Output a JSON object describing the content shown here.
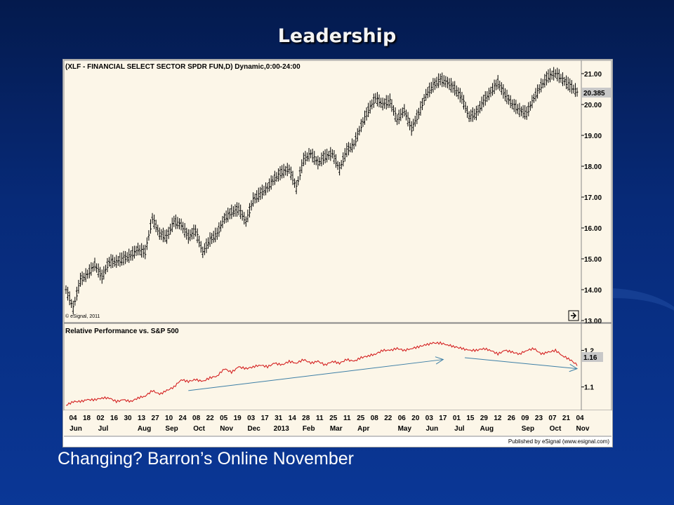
{
  "slide": {
    "title": "Leadership",
    "caption": "Changing? Barron’s Online November"
  },
  "chart_data": [
    {
      "type": "ohlc",
      "title": "(XLF - FINANCIAL SELECT SECTOR SPDR FUN,D) Dynamic,0:00-24:00",
      "watermark": "© eSignal, 2011",
      "ylim": [
        13.0,
        21.25
      ],
      "yticks": [
        "21.00",
        "20.00",
        "19.00",
        "18.00",
        "17.00",
        "16.00",
        "15.00",
        "14.00",
        "13.00"
      ],
      "last_price": "20.385",
      "grid": false,
      "x": [
        0,
        5,
        10,
        15,
        20,
        25,
        30,
        35,
        40,
        45,
        50,
        55,
        60,
        65,
        70,
        75,
        80,
        85,
        90,
        95,
        100,
        105,
        110,
        115,
        120,
        125,
        130,
        135,
        140,
        145,
        150,
        155,
        160,
        165,
        170,
        175,
        180,
        185,
        190,
        195,
        200,
        205,
        210,
        215,
        220,
        225,
        230,
        235,
        240,
        245,
        250,
        255,
        260,
        265,
        270,
        275,
        280,
        285,
        290,
        295,
        300,
        305,
        310,
        315,
        320,
        325,
        330,
        335,
        340,
        345,
        350,
        355
      ],
      "close": [
        14.0,
        13.4,
        14.3,
        14.5,
        14.8,
        14.4,
        14.9,
        14.9,
        15.0,
        15.1,
        15.3,
        15.2,
        16.3,
        15.8,
        15.7,
        16.2,
        16.1,
        15.7,
        15.9,
        15.2,
        15.6,
        15.8,
        16.3,
        16.5,
        16.6,
        16.2,
        16.9,
        17.1,
        17.3,
        17.6,
        17.8,
        17.9,
        17.3,
        18.2,
        18.4,
        18.1,
        18.3,
        18.4,
        17.9,
        18.5,
        18.7,
        19.3,
        19.8,
        20.2,
        20.0,
        20.1,
        19.5,
        19.8,
        19.2,
        19.7,
        20.3,
        20.6,
        20.8,
        20.7,
        20.5,
        20.2,
        19.6,
        19.7,
        20.1,
        20.4,
        20.7,
        20.3,
        20.0,
        19.8,
        19.7,
        20.2,
        20.6,
        20.9,
        21.0,
        20.8,
        20.6,
        20.4
      ]
    },
    {
      "type": "line",
      "title": "Relative Performance vs. S&P 500",
      "ylim": [
        1.04,
        1.27
      ],
      "yticks": [
        "1.2",
        "1.1"
      ],
      "last_value": "1.16",
      "x": [
        0,
        5,
        10,
        15,
        20,
        25,
        30,
        35,
        40,
        45,
        50,
        55,
        60,
        65,
        70,
        75,
        80,
        85,
        90,
        95,
        100,
        105,
        110,
        115,
        120,
        125,
        130,
        135,
        140,
        145,
        150,
        155,
        160,
        165,
        170,
        175,
        180,
        185,
        190,
        195,
        200,
        205,
        210,
        215,
        220,
        225,
        230,
        235,
        240,
        245,
        250,
        255,
        260,
        265,
        270,
        275,
        280,
        285,
        290,
        295,
        300,
        305,
        310,
        315,
        320,
        325,
        330,
        335,
        340,
        345,
        350,
        355
      ],
      "values": [
        1.05,
        1.06,
        1.06,
        1.065,
        1.065,
        1.07,
        1.07,
        1.06,
        1.065,
        1.06,
        1.07,
        1.075,
        1.09,
        1.08,
        1.09,
        1.1,
        1.12,
        1.115,
        1.12,
        1.115,
        1.125,
        1.13,
        1.15,
        1.14,
        1.155,
        1.15,
        1.155,
        1.16,
        1.155,
        1.165,
        1.16,
        1.17,
        1.165,
        1.175,
        1.165,
        1.17,
        1.16,
        1.17,
        1.165,
        1.175,
        1.17,
        1.18,
        1.185,
        1.19,
        1.2,
        1.2,
        1.205,
        1.2,
        1.205,
        1.21,
        1.215,
        1.22,
        1.22,
        1.215,
        1.21,
        1.205,
        1.2,
        1.2,
        1.205,
        1.2,
        1.19,
        1.2,
        1.195,
        1.19,
        1.2,
        1.205,
        1.19,
        1.195,
        1.2,
        1.185,
        1.175,
        1.16
      ],
      "annotations": [
        {
          "type": "arrow",
          "from": [
            85,
            1.09
          ],
          "to": [
            262,
            1.175
          ]
        },
        {
          "type": "arrow",
          "from": [
            277,
            1.18
          ],
          "to": [
            355,
            1.15
          ]
        }
      ]
    }
  ],
  "x_axis": {
    "day_labels": [
      "04",
      "18",
      "02",
      "16",
      "30",
      "13",
      "27",
      "10",
      "24",
      "08",
      "22",
      "05",
      "19",
      "03",
      "17",
      "31",
      "14",
      "28",
      "11",
      "25",
      "11",
      "25",
      "08",
      "22",
      "06",
      "20",
      "03",
      "17",
      "01",
      "15",
      "29",
      "12",
      "26",
      "09",
      "23",
      "07",
      "21",
      "04"
    ],
    "month_labels": [
      {
        "label": "Jun",
        "at": 0
      },
      {
        "label": "Jul",
        "at": 2
      },
      {
        "label": "Aug",
        "at": 5
      },
      {
        "label": "Sep",
        "at": 7
      },
      {
        "label": "Oct",
        "at": 9
      },
      {
        "label": "Nov",
        "at": 11
      },
      {
        "label": "Dec",
        "at": 13
      },
      {
        "label": "2013",
        "at": 15
      },
      {
        "label": "Feb",
        "at": 17
      },
      {
        "label": "Mar",
        "at": 19
      },
      {
        "label": "Apr",
        "at": 21
      },
      {
        "label": "May",
        "at": 24
      },
      {
        "label": "Jun",
        "at": 26
      },
      {
        "label": "Jul",
        "at": 28
      },
      {
        "label": "Aug",
        "at": 30
      },
      {
        "label": "Sep",
        "at": 33
      },
      {
        "label": "Oct",
        "at": 35
      },
      {
        "label": "Nov",
        "at": 37
      }
    ]
  },
  "footer": "Published by eSignal (www.esignal.com)",
  "colors": {
    "plot_bg": "#fcf6e8",
    "price_bars": "#000000",
    "rel_line": "#d42020",
    "arrows": "#3d7fa6"
  }
}
